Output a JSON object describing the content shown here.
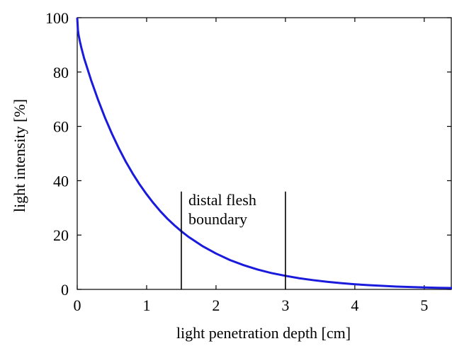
{
  "chart_data": {
    "type": "line",
    "title": "",
    "xlabel": "light penetration depth [cm]",
    "ylabel": "light intensity [%]",
    "xlim": [
      0,
      5.4
    ],
    "ylim": [
      0,
      100
    ],
    "x_ticks": [
      "0",
      "1",
      "2",
      "3",
      "4",
      "5"
    ],
    "y_ticks": [
      "0",
      "20",
      "40",
      "60",
      "80",
      "100"
    ],
    "grid": false,
    "series": [
      {
        "color": "#1a1adc",
        "x": [
          0,
          0.01,
          0.02,
          0.04,
          0.06,
          0.1,
          0.2,
          0.3,
          0.4,
          0.5,
          0.6,
          0.7,
          0.8,
          0.9,
          1.0,
          1.1,
          1.2,
          1.3,
          1.4,
          1.5,
          1.6,
          1.8,
          2.0,
          2.2,
          2.4,
          2.6,
          2.8,
          3.0,
          3.2,
          3.4,
          3.6,
          3.8,
          4.0,
          4.2,
          4.4,
          4.6,
          4.8,
          5.0,
          5.2,
          5.4
        ],
        "y": [
          100,
          95.5,
          93.6,
          91.1,
          88.9,
          85.0,
          77.0,
          69.8,
          63.2,
          57.3,
          51.9,
          47.0,
          42.6,
          38.6,
          35.0,
          31.7,
          28.7,
          26.0,
          23.6,
          21.4,
          19.4,
          16.0,
          13.2,
          10.8,
          8.9,
          7.3,
          6.0,
          5.0,
          4.1,
          3.4,
          2.8,
          2.3,
          1.9,
          1.55,
          1.3,
          1.05,
          0.87,
          0.72,
          0.6,
          0.5
        ]
      }
    ],
    "annotations": {
      "boundary_lines": [
        {
          "x": 1.5,
          "y_top": 36
        },
        {
          "x": 3.0,
          "y_top": 36
        }
      ],
      "label_lines": [
        "distal flesh",
        "boundary"
      ]
    }
  }
}
